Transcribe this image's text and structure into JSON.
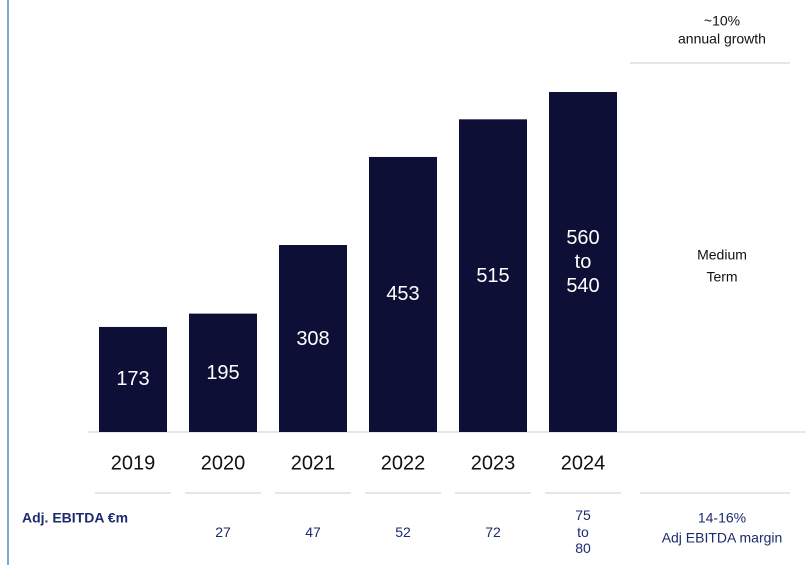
{
  "chart_data": {
    "type": "bar",
    "categories": [
      "2019",
      "2020",
      "2021",
      "2022",
      "2023",
      "2024"
    ],
    "values": [
      173,
      195,
      308,
      453,
      515,
      560
    ],
    "value_labels": [
      "173",
      "195",
      "308",
      "453",
      "515",
      "560 to 540"
    ],
    "color": "#0e0f36",
    "ylim": [
      0,
      700
    ],
    "ebitda": {
      "label": "Adj. EBITDA €m",
      "values": [
        27,
        47,
        52,
        72,
        75
      ],
      "value_labels": [
        "27",
        "47",
        "52",
        "72",
        "75 to 80"
      ]
    },
    "annotations": [
      [
        "~10%",
        "annual growth"
      ],
      [
        "Medium",
        "Term"
      ],
      [
        "14-16%",
        "Adj EBITDA margin"
      ]
    ]
  }
}
